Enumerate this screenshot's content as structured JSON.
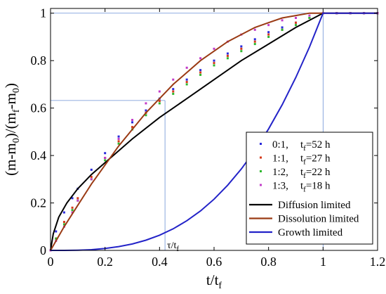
{
  "chart_data": {
    "type": "line",
    "title": "",
    "xlabel": "t/t_f",
    "ylabel": "(m-m_0)/(m_f-m_0)",
    "xlim": [
      0,
      1.2
    ],
    "ylim": [
      0,
      1.02
    ],
    "xticks": [
      "0",
      "0.2",
      "0.4",
      "0.6",
      "0.8",
      "1",
      "1.2"
    ],
    "yticks": [
      "0",
      "0.2",
      "0.4",
      "0.6",
      "0.8",
      "1"
    ],
    "grid": false,
    "legend_position": "lower-right",
    "annotation": {
      "text": "τ/t_f",
      "tau_x": 0.42,
      "tau_y": 0.632
    },
    "scatter_series": [
      {
        "legend_ratio": "0:1,",
        "legend_tf": "t_f=52 h",
        "color": "#2a2adb",
        "x": [
          0,
          0.02,
          0.05,
          0.08,
          0.1,
          0.15,
          0.2,
          0.25,
          0.3,
          0.35,
          0.4,
          0.45,
          0.5,
          0.55,
          0.6,
          0.65,
          0.7,
          0.75,
          0.8,
          0.85,
          0.9,
          0.95,
          1.0,
          1.05,
          1.1,
          1.15,
          1.2
        ],
        "y": [
          0,
          0.08,
          0.16,
          0.22,
          0.26,
          0.34,
          0.41,
          0.48,
          0.54,
          0.59,
          0.64,
          0.68,
          0.72,
          0.76,
          0.8,
          0.83,
          0.86,
          0.89,
          0.92,
          0.94,
          0.96,
          0.98,
          1.0,
          1.0,
          1.0,
          1.0,
          1.0
        ]
      },
      {
        "legend_ratio": "1:1,",
        "legend_tf": "t_f=27 h",
        "color": "#d63a1a",
        "x": [
          0,
          0.02,
          0.05,
          0.08,
          0.1,
          0.15,
          0.2,
          0.25,
          0.3,
          0.35,
          0.4,
          0.45,
          0.5,
          0.55,
          0.6,
          0.65,
          0.7,
          0.75,
          0.8,
          0.85,
          0.9,
          0.95,
          1.0,
          1.05,
          1.1,
          1.15,
          1.2
        ],
        "y": [
          0,
          0.05,
          0.12,
          0.18,
          0.22,
          0.31,
          0.39,
          0.46,
          0.52,
          0.58,
          0.63,
          0.67,
          0.71,
          0.75,
          0.79,
          0.82,
          0.85,
          0.88,
          0.91,
          0.93,
          0.96,
          0.98,
          1.0,
          1.0,
          1.0,
          1.0,
          1.0
        ]
      },
      {
        "legend_ratio": "1:2,",
        "legend_tf": "t_f=22 h",
        "color": "#2fb82f",
        "x": [
          0,
          0.02,
          0.05,
          0.08,
          0.1,
          0.15,
          0.2,
          0.25,
          0.3,
          0.35,
          0.4,
          0.45,
          0.5,
          0.55,
          0.6,
          0.65,
          0.7,
          0.75,
          0.8,
          0.85,
          0.9,
          0.95,
          1.0,
          1.05,
          1.1,
          1.15,
          1.2
        ],
        "y": [
          0,
          0.05,
          0.11,
          0.17,
          0.21,
          0.3,
          0.38,
          0.45,
          0.51,
          0.57,
          0.62,
          0.66,
          0.7,
          0.74,
          0.78,
          0.81,
          0.84,
          0.87,
          0.9,
          0.93,
          0.95,
          0.98,
          1.0,
          1.0,
          1.0,
          1.0,
          1.0
        ]
      },
      {
        "legend_ratio": "1:3,",
        "legend_tf": "t_f=18 h",
        "color": "#c23cc8",
        "x": [
          0,
          0.02,
          0.05,
          0.08,
          0.1,
          0.15,
          0.2,
          0.25,
          0.3,
          0.35,
          0.4,
          0.45,
          0.5,
          0.55,
          0.6,
          0.65,
          0.7,
          0.75,
          0.8,
          0.85,
          0.9,
          0.95,
          1.0,
          1.05,
          1.1,
          1.15,
          1.2
        ],
        "y": [
          0,
          0.04,
          0.1,
          0.16,
          0.21,
          0.3,
          0.39,
          0.47,
          0.55,
          0.62,
          0.67,
          0.72,
          0.77,
          0.81,
          0.85,
          0.88,
          0.91,
          0.93,
          0.95,
          0.97,
          0.98,
          0.99,
          1.0,
          1.0,
          1.0,
          1.0,
          1.0
        ]
      }
    ],
    "line_series": [
      {
        "name": "Diffusion limited",
        "color": "#000000",
        "x": [
          0,
          0.01,
          0.03,
          0.06,
          0.1,
          0.15,
          0.2,
          0.3,
          0.4,
          0.5,
          0.6,
          0.7,
          0.8,
          0.9,
          1.0,
          1.2
        ],
        "y": [
          0,
          0.07,
          0.14,
          0.2,
          0.26,
          0.32,
          0.37,
          0.47,
          0.56,
          0.64,
          0.72,
          0.8,
          0.87,
          0.94,
          1.0,
          1.0
        ]
      },
      {
        "name": "Dissolution limited",
        "color": "#9a3a14",
        "x": [
          0,
          0.05,
          0.1,
          0.15,
          0.2,
          0.25,
          0.3,
          0.35,
          0.4,
          0.45,
          0.5,
          0.55,
          0.6,
          0.65,
          0.7,
          0.75,
          0.8,
          0.85,
          0.9,
          0.95,
          1.0,
          1.2
        ],
        "y": [
          0,
          0.1,
          0.19,
          0.28,
          0.36,
          0.44,
          0.51,
          0.58,
          0.64,
          0.7,
          0.75,
          0.8,
          0.84,
          0.88,
          0.91,
          0.94,
          0.96,
          0.98,
          0.99,
          1.0,
          1.0,
          1.0
        ]
      },
      {
        "name": "Growth limited",
        "color": "#2323c8",
        "x": [
          0,
          0.05,
          0.1,
          0.15,
          0.2,
          0.25,
          0.3,
          0.35,
          0.4,
          0.45,
          0.5,
          0.55,
          0.6,
          0.65,
          0.7,
          0.75,
          0.8,
          0.85,
          0.9,
          0.95,
          1.0,
          1.2
        ],
        "y": [
          0,
          0.0,
          0.001,
          0.003,
          0.008,
          0.016,
          0.027,
          0.043,
          0.064,
          0.091,
          0.125,
          0.166,
          0.216,
          0.275,
          0.343,
          0.422,
          0.512,
          0.614,
          0.729,
          0.857,
          1.0,
          1.0
        ]
      }
    ]
  }
}
